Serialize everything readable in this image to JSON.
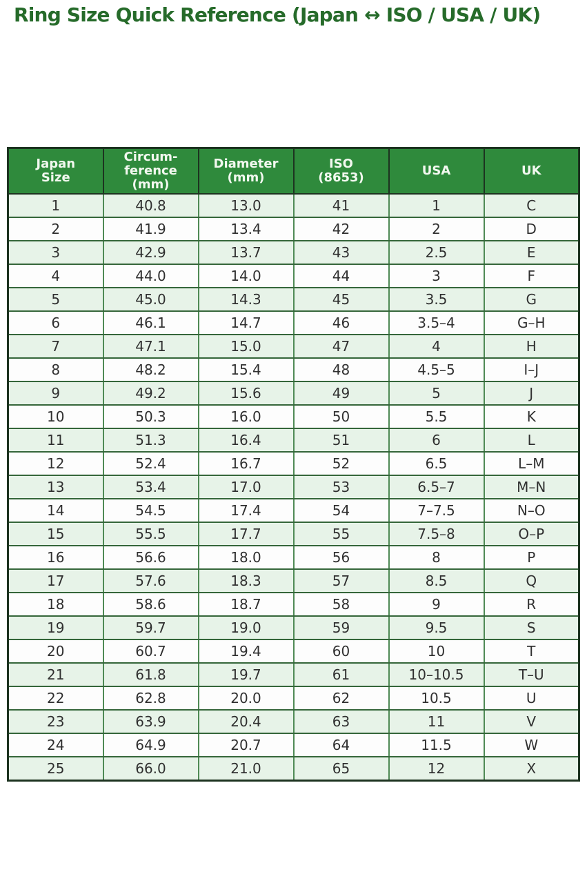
{
  "page": {
    "title": "Ring Size Quick Reference (Japan ↔ ISO / USA / UK)"
  },
  "colors": {
    "title_text": "#266b2a",
    "header_bg": "#2f8a3c",
    "header_text": "#f2f8ef",
    "row_alt_bg": "#e7f3e8",
    "row_bg": "#fdfdfd",
    "border_dark": "#1d3320",
    "border_green_h": "#35663a",
    "border_green_v": "#4f8a55",
    "cell_text": "#303030"
  },
  "table": {
    "columns": [
      "Japan\nSize",
      "Circum-\nference\n(mm)",
      "Diameter\n(mm)",
      "ISO\n(8653)",
      "USA",
      "UK"
    ],
    "rows": [
      [
        "1",
        "40.8",
        "13.0",
        "41",
        "1",
        "C"
      ],
      [
        "2",
        "41.9",
        "13.4",
        "42",
        "2",
        "D"
      ],
      [
        "3",
        "42.9",
        "13.7",
        "43",
        "2.5",
        "E"
      ],
      [
        "4",
        "44.0",
        "14.0",
        "44",
        "3",
        "F"
      ],
      [
        "5",
        "45.0",
        "14.3",
        "45",
        "3.5",
        "G"
      ],
      [
        "6",
        "46.1",
        "14.7",
        "46",
        "3.5–4",
        "G–H"
      ],
      [
        "7",
        "47.1",
        "15.0",
        "47",
        "4",
        "H"
      ],
      [
        "8",
        "48.2",
        "15.4",
        "48",
        "4.5–5",
        "I–J"
      ],
      [
        "9",
        "49.2",
        "15.6",
        "49",
        "5",
        "J"
      ],
      [
        "10",
        "50.3",
        "16.0",
        "50",
        "5.5",
        "K"
      ],
      [
        "11",
        "51.3",
        "16.4",
        "51",
        "6",
        "L"
      ],
      [
        "12",
        "52.4",
        "16.7",
        "52",
        "6.5",
        "L–M"
      ],
      [
        "13",
        "53.4",
        "17.0",
        "53",
        "6.5–7",
        "M–N"
      ],
      [
        "14",
        "54.5",
        "17.4",
        "54",
        "7–7.5",
        "N–O"
      ],
      [
        "15",
        "55.5",
        "17.7",
        "55",
        "7.5–8",
        "O–P"
      ],
      [
        "16",
        "56.6",
        "18.0",
        "56",
        "8",
        "P"
      ],
      [
        "17",
        "57.6",
        "18.3",
        "57",
        "8.5",
        "Q"
      ],
      [
        "18",
        "58.6",
        "18.7",
        "58",
        "9",
        "R"
      ],
      [
        "19",
        "59.7",
        "19.0",
        "59",
        "9.5",
        "S"
      ],
      [
        "20",
        "60.7",
        "19.4",
        "60",
        "10",
        "T"
      ],
      [
        "21",
        "61.8",
        "19.7",
        "61",
        "10–10.5",
        "T–U"
      ],
      [
        "22",
        "62.8",
        "20.0",
        "62",
        "10.5",
        "U"
      ],
      [
        "23",
        "63.9",
        "20.4",
        "63",
        "11",
        "V"
      ],
      [
        "24",
        "64.9",
        "20.7",
        "64",
        "11.5",
        "W"
      ],
      [
        "25",
        "66.0",
        "21.0",
        "65",
        "12",
        "X"
      ]
    ]
  }
}
